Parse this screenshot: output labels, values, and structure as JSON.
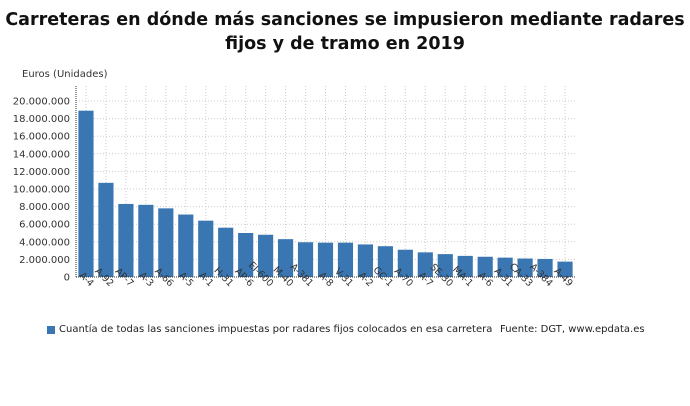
{
  "chart_data": {
    "type": "bar",
    "title": "Carreteras en dónde más sanciones se impusieron mediante radares fijos y de tramo en 2019",
    "ylabel": "Euros (Unidades)",
    "xlabel": "",
    "ylim": [
      0,
      20000000
    ],
    "yticks": [
      "0",
      "2.000.000",
      "4.000.000",
      "6.000.000",
      "8.000.000",
      "10.000.000",
      "12.000.000",
      "14.000.000",
      "16.000.000",
      "18.000.000",
      "20.000.000"
    ],
    "grid": true,
    "legend_position": "bottom",
    "color": "#3a77b2",
    "categories": [
      "A-4",
      "A-92",
      "AP-7",
      "A-3",
      "A-66",
      "A-5",
      "A-1",
      "H-31",
      "AP-6",
      "EI-600",
      "M-40",
      "A-381",
      "A-8",
      "V-31",
      "A-2",
      "GC-1",
      "A-70",
      "A-7",
      "SE-30",
      "MA-1",
      "A-6",
      "A-31",
      "CA-33",
      "A-384",
      "A-49"
    ],
    "series": [
      {
        "name": "Cuantía de todas las sanciones impuestas por radares fijos colocados en esa carretera",
        "values": [
          18900000,
          10700000,
          8300000,
          8200000,
          7800000,
          7100000,
          6400000,
          5600000,
          5000000,
          4800000,
          4300000,
          3950000,
          3900000,
          3900000,
          3700000,
          3500000,
          3100000,
          2800000,
          2600000,
          2400000,
          2300000,
          2200000,
          2100000,
          2050000,
          1750000
        ]
      }
    ],
    "source": "Fuente: DGT, www.epdata.es"
  }
}
